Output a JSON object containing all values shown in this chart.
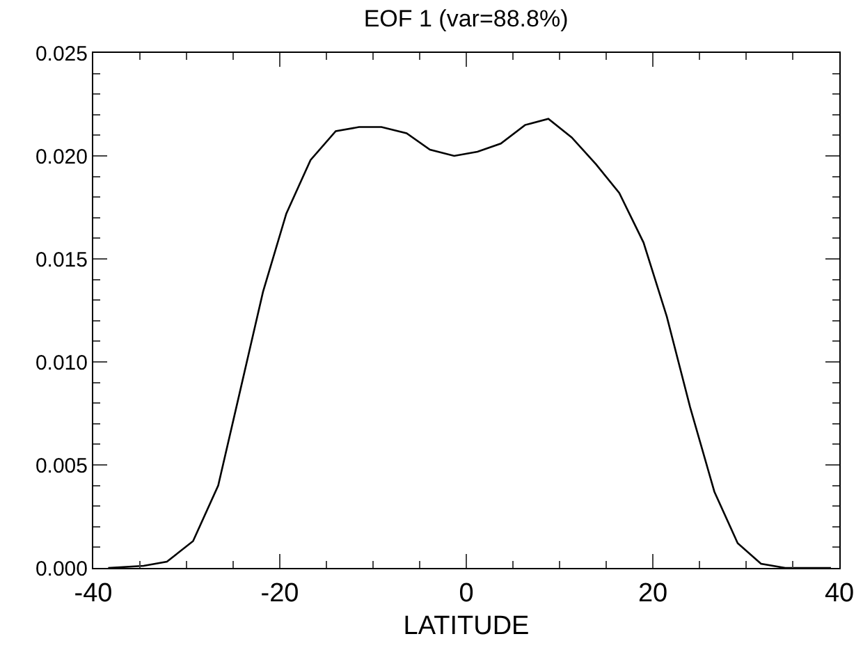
{
  "chart_data": {
    "type": "line",
    "title": "EOF 1 (var=88.8%)",
    "xlabel": "LATITUDE",
    "x": [
      -38.4,
      -34.6,
      -32.1,
      -29.3,
      -26.6,
      -24.3,
      -21.8,
      -19.3,
      -16.7,
      -14.0,
      -11.5,
      -9.1,
      -6.4,
      -3.9,
      -1.3,
      1.2,
      3.7,
      6.3,
      8.8,
      11.3,
      13.9,
      16.4,
      19.0,
      21.5,
      24.0,
      26.6,
      29.1,
      31.6,
      34.2,
      36.7,
      39.1
    ],
    "series": [
      {
        "color": "#000000",
        "values": [
          0.0,
          0.0001,
          0.0003,
          0.0013,
          0.004,
          0.0085,
          0.0134,
          0.0172,
          0.0198,
          0.0212,
          0.0214,
          0.0214,
          0.0211,
          0.0203,
          0.02,
          0.0202,
          0.0206,
          0.0215,
          0.0218,
          0.0209,
          0.0196,
          0.0182,
          0.0158,
          0.0122,
          0.0078,
          0.0037,
          0.0012,
          0.0002,
          0.0,
          0.0,
          0.0
        ]
      }
    ],
    "xlim": [
      -40,
      40
    ],
    "xticks": [
      -40,
      -20,
      0,
      20,
      40
    ],
    "ylim": [
      0,
      0.025
    ],
    "yticks": [
      {
        "value": 0,
        "label": "0.000"
      },
      {
        "value": 0.005,
        "label": "0.005"
      },
      {
        "value": 0.01,
        "label": "0.010"
      },
      {
        "value": 0.015,
        "label": "0.015"
      },
      {
        "value": 0.02,
        "label": "0.020"
      },
      {
        "value": 0.025,
        "label": "0.025"
      }
    ],
    "marker": "none",
    "line_style": "solid"
  }
}
